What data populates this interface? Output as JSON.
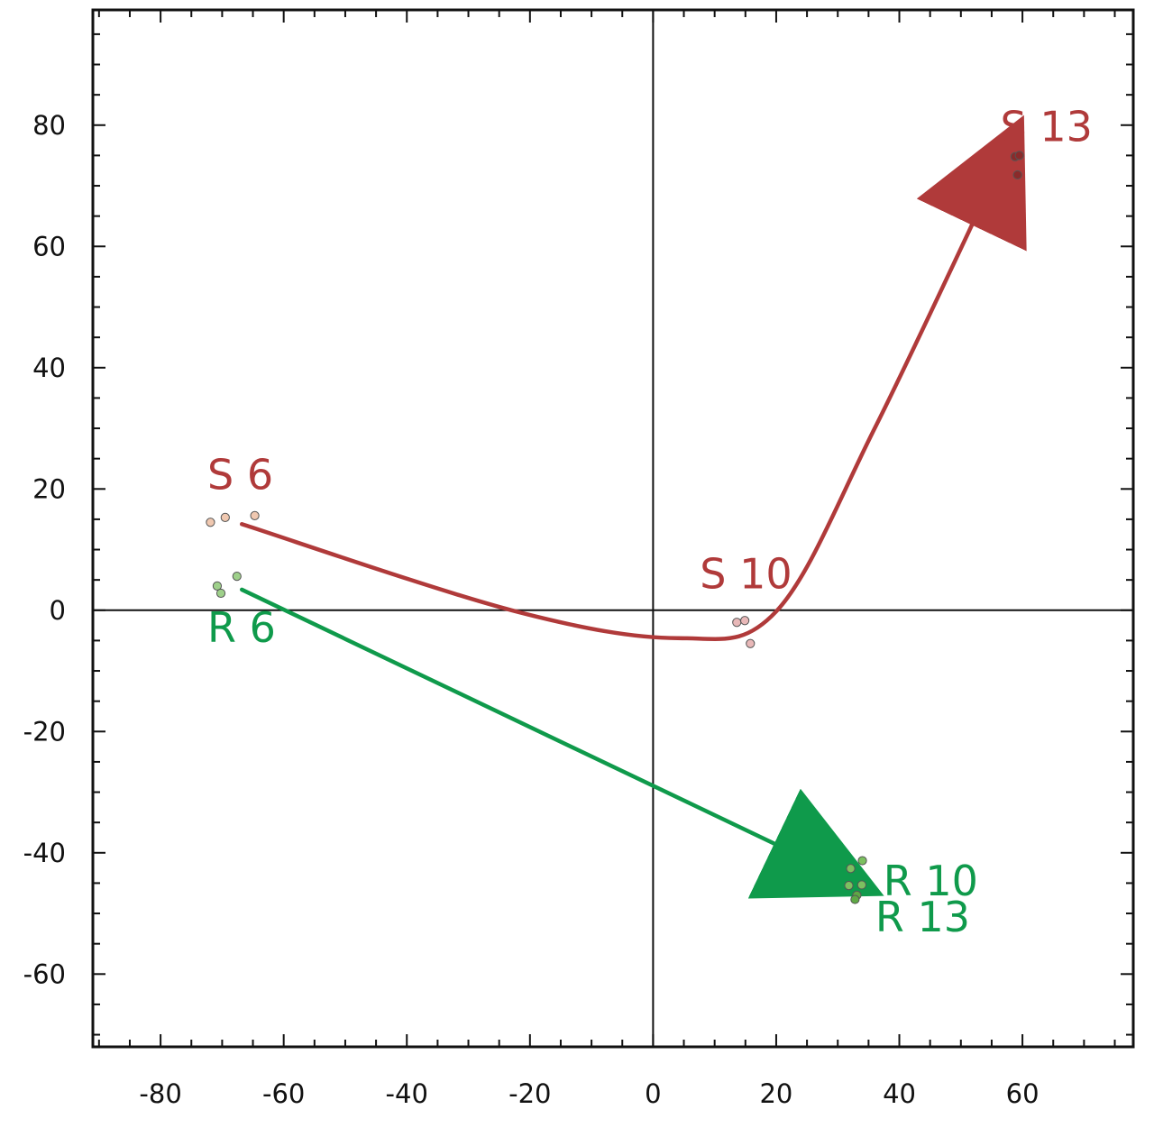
{
  "chart_data": {
    "type": "scatter",
    "title": "",
    "xlabel": "",
    "ylabel": "",
    "xlim": [
      -91,
      78
    ],
    "ylim": [
      -72,
      99
    ],
    "xticks": [
      -80,
      -60,
      -40,
      -20,
      0,
      20,
      40,
      60
    ],
    "yticks": [
      -60,
      -40,
      -20,
      0,
      20,
      40,
      60,
      80
    ],
    "x_tick_labels": [
      "-80",
      "-60",
      "-40",
      "-20",
      "0",
      "20",
      "40",
      "60"
    ],
    "y_tick_labels": [
      "-60",
      "-40",
      "-20",
      "0",
      "20",
      "40",
      "60",
      "80"
    ],
    "grid": false,
    "zero_lines": true,
    "colors": {
      "S": "#b03a3a",
      "R": "#0f9a4b"
    },
    "series": [
      {
        "group": "S",
        "points": [
          {
            "x": -71.9,
            "y": 14.5,
            "stage": 6,
            "fill": "#f0c8b0"
          },
          {
            "x": -69.5,
            "y": 15.3,
            "stage": 6,
            "fill": "#f0c8b0"
          },
          {
            "x": -64.7,
            "y": 15.6,
            "stage": 6,
            "fill": "#f0c8b0"
          },
          {
            "x": 13.6,
            "y": -2.0,
            "stage": 10,
            "fill": "#e8b8b8"
          },
          {
            "x": 14.9,
            "y": -1.7,
            "stage": 10,
            "fill": "#e8b8b8"
          },
          {
            "x": 15.8,
            "y": -5.5,
            "stage": 10,
            "fill": "#e8b8b8"
          },
          {
            "x": 58.8,
            "y": 74.8,
            "stage": 13,
            "fill": "#8b2a2a"
          },
          {
            "x": 59.5,
            "y": 75.0,
            "stage": 13,
            "fill": "#8b2a2a"
          },
          {
            "x": 59.2,
            "y": 71.8,
            "stage": 13,
            "fill": "#8b2a2a"
          }
        ],
        "trajectory": [
          [
            -66.8,
            14.2
          ],
          [
            -23,
            0
          ],
          [
            4,
            -4.6
          ],
          [
            20,
            -0.2
          ],
          [
            36,
            30
          ],
          [
            56,
            72.6
          ]
        ]
      },
      {
        "group": "R",
        "points": [
          {
            "x": -70.8,
            "y": 4.0,
            "stage": 6,
            "fill": "#9ed08a"
          },
          {
            "x": -70.2,
            "y": 2.8,
            "stage": 6,
            "fill": "#9ed08a"
          },
          {
            "x": -67.6,
            "y": 5.6,
            "stage": 6,
            "fill": "#9ed08a"
          },
          {
            "x": 32.1,
            "y": -42.6,
            "stage": 10,
            "fill": "#7cc060"
          },
          {
            "x": 34.0,
            "y": -41.3,
            "stage": 10,
            "fill": "#7cc060"
          },
          {
            "x": 31.8,
            "y": -45.4,
            "stage": 10,
            "fill": "#7cc060"
          },
          {
            "x": 33.9,
            "y": -45.3,
            "stage": 10,
            "fill": "#7cc060"
          },
          {
            "x": 33.1,
            "y": -47.0,
            "stage": 13,
            "fill": "#5fa845"
          },
          {
            "x": 32.8,
            "y": -47.7,
            "stage": 13,
            "fill": "#5fa845"
          }
        ],
        "trajectory": [
          [
            -66.8,
            3.4
          ],
          [
            28.6,
            -42.8
          ]
        ]
      }
    ],
    "annotations": [
      {
        "text": "S 6",
        "x": -72.4,
        "y": 20.0,
        "group": "S"
      },
      {
        "text": "S 10",
        "x": 7.6,
        "y": 3.6,
        "group": "S"
      },
      {
        "text": "S 13",
        "x": 56.4,
        "y": 77.4,
        "group": "S"
      },
      {
        "text": "R 6",
        "x": -72.4,
        "y": -5.2,
        "group": "R"
      },
      {
        "text": "R 10",
        "x": 37.4,
        "y": -47.0,
        "group": "R"
      },
      {
        "text": "R 13",
        "x": 36.1,
        "y": -53.0,
        "group": "R"
      }
    ]
  }
}
